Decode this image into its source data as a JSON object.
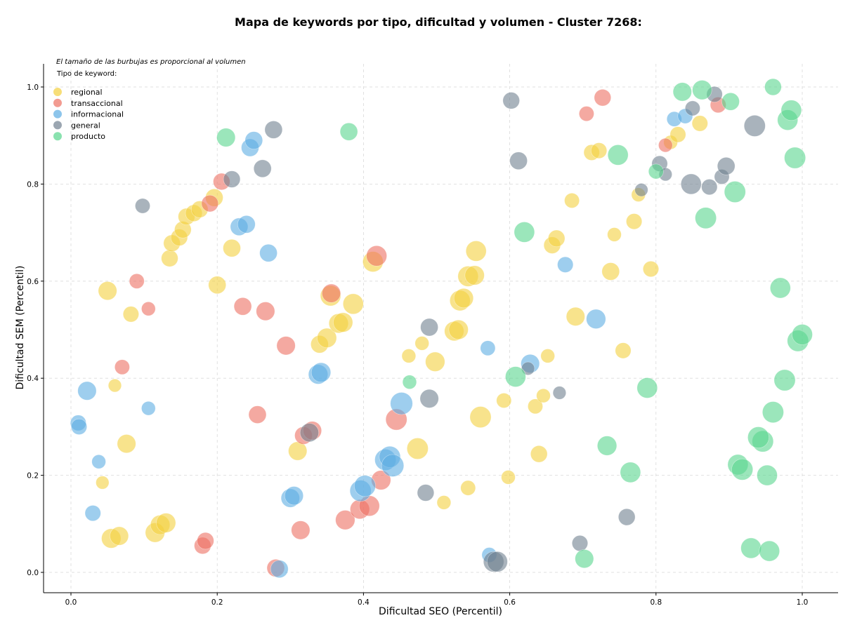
{
  "chart_data": {
    "type": "scatter",
    "title": "Mapa de keywords por tipo, dificultad y volumen - Cluster 7268:",
    "xlabel": "Dificultad SEO (Percentil)",
    "ylabel": "Dificultad SEM (Percentil)",
    "note": "El tamaño de las burbujas es proporcional al volumen",
    "legend_title": "Tipo de keyword:",
    "legend_position": "top-left",
    "grid": true,
    "xlim": [
      -0.05,
      1.05
    ],
    "ylim": [
      -0.04,
      1.05
    ],
    "x_ticks": [
      "0.0",
      "0.2",
      "0.4",
      "0.6",
      "0.8",
      "1.0"
    ],
    "y_ticks": [
      "0.0",
      "0.2",
      "0.4",
      "0.6",
      "0.8",
      "1.0"
    ],
    "series": [
      {
        "name": "regional",
        "color": "#f4d03f",
        "points": [
          [
            0.05,
            0.58,
            0.55
          ],
          [
            0.082,
            0.532,
            0.4
          ],
          [
            0.06,
            0.385,
            0.25
          ],
          [
            0.076,
            0.265,
            0.55
          ],
          [
            0.043,
            0.185,
            0.25
          ],
          [
            0.055,
            0.07,
            0.6
          ],
          [
            0.066,
            0.075,
            0.55
          ],
          [
            0.115,
            0.082,
            0.6
          ],
          [
            0.122,
            0.098,
            0.6
          ],
          [
            0.13,
            0.102,
            0.6
          ],
          [
            0.135,
            0.647,
            0.45
          ],
          [
            0.138,
            0.678,
            0.45
          ],
          [
            0.148,
            0.69,
            0.45
          ],
          [
            0.153,
            0.706,
            0.45
          ],
          [
            0.158,
            0.733,
            0.45
          ],
          [
            0.168,
            0.74,
            0.45
          ],
          [
            0.176,
            0.748,
            0.45
          ],
          [
            0.196,
            0.772,
            0.5
          ],
          [
            0.2,
            0.592,
            0.5
          ],
          [
            0.22,
            0.668,
            0.5
          ],
          [
            0.31,
            0.25,
            0.55
          ],
          [
            0.34,
            0.47,
            0.5
          ],
          [
            0.35,
            0.483,
            0.6
          ],
          [
            0.355,
            0.57,
            0.65
          ],
          [
            0.366,
            0.513,
            0.6
          ],
          [
            0.372,
            0.515,
            0.6
          ],
          [
            0.386,
            0.553,
            0.65
          ],
          [
            0.413,
            0.64,
            0.65
          ],
          [
            0.474,
            0.255,
            0.7
          ],
          [
            0.48,
            0.472,
            0.3
          ],
          [
            0.462,
            0.446,
            0.3
          ],
          [
            0.498,
            0.434,
            0.6
          ],
          [
            0.51,
            0.144,
            0.3
          ],
          [
            0.524,
            0.497,
            0.6
          ],
          [
            0.53,
            0.5,
            0.6
          ],
          [
            0.532,
            0.56,
            0.65
          ],
          [
            0.537,
            0.565,
            0.6
          ],
          [
            0.543,
            0.61,
            0.65
          ],
          [
            0.552,
            0.612,
            0.6
          ],
          [
            0.554,
            0.662,
            0.65
          ],
          [
            0.56,
            0.32,
            0.7
          ],
          [
            0.543,
            0.174,
            0.35
          ],
          [
            0.592,
            0.354,
            0.35
          ],
          [
            0.598,
            0.196,
            0.3
          ],
          [
            0.635,
            0.342,
            0.35
          ],
          [
            0.64,
            0.244,
            0.45
          ],
          [
            0.646,
            0.364,
            0.3
          ],
          [
            0.652,
            0.446,
            0.3
          ],
          [
            0.658,
            0.674,
            0.45
          ],
          [
            0.664,
            0.688,
            0.45
          ],
          [
            0.685,
            0.766,
            0.35
          ],
          [
            0.69,
            0.527,
            0.55
          ],
          [
            0.712,
            0.865,
            0.4
          ],
          [
            0.722,
            0.869,
            0.4
          ],
          [
            0.738,
            0.62,
            0.5
          ],
          [
            0.743,
            0.696,
            0.3
          ],
          [
            0.755,
            0.457,
            0.4
          ],
          [
            0.77,
            0.723,
            0.4
          ],
          [
            0.776,
            0.778,
            0.3
          ],
          [
            0.793,
            0.625,
            0.4
          ],
          [
            0.82,
            0.886,
            0.3
          ],
          [
            0.83,
            0.902,
            0.4
          ],
          [
            0.86,
            0.925,
            0.4
          ]
        ]
      },
      {
        "name": "transaccional",
        "color": "#ec7063",
        "points": [
          [
            0.07,
            0.423,
            0.35
          ],
          [
            0.09,
            0.6,
            0.35
          ],
          [
            0.106,
            0.543,
            0.3
          ],
          [
            0.18,
            0.055,
            0.45
          ],
          [
            0.184,
            0.065,
            0.45
          ],
          [
            0.19,
            0.76,
            0.45
          ],
          [
            0.206,
            0.805,
            0.45
          ],
          [
            0.235,
            0.548,
            0.5
          ],
          [
            0.255,
            0.325,
            0.5
          ],
          [
            0.266,
            0.538,
            0.55
          ],
          [
            0.28,
            0.009,
            0.5
          ],
          [
            0.294,
            0.467,
            0.55
          ],
          [
            0.314,
            0.087,
            0.55
          ],
          [
            0.318,
            0.282,
            0.5
          ],
          [
            0.33,
            0.292,
            0.55
          ],
          [
            0.356,
            0.575,
            0.55
          ],
          [
            0.375,
            0.108,
            0.6
          ],
          [
            0.395,
            0.13,
            0.6
          ],
          [
            0.408,
            0.137,
            0.65
          ],
          [
            0.424,
            0.19,
            0.6
          ],
          [
            0.418,
            0.652,
            0.65
          ],
          [
            0.445,
            0.315,
            0.7
          ],
          [
            0.705,
            0.945,
            0.35
          ],
          [
            0.727,
            0.978,
            0.45
          ],
          [
            0.813,
            0.88,
            0.3
          ],
          [
            0.885,
            0.963,
            0.4
          ]
        ]
      },
      {
        "name": "informacional",
        "color": "#5dade2",
        "points": [
          [
            0.01,
            0.308,
            0.4
          ],
          [
            0.011,
            0.3,
            0.4
          ],
          [
            0.022,
            0.374,
            0.55
          ],
          [
            0.03,
            0.122,
            0.4
          ],
          [
            0.038,
            0.228,
            0.3
          ],
          [
            0.106,
            0.338,
            0.3
          ],
          [
            0.23,
            0.712,
            0.5
          ],
          [
            0.24,
            0.717,
            0.5
          ],
          [
            0.245,
            0.875,
            0.5
          ],
          [
            0.25,
            0.89,
            0.5
          ],
          [
            0.27,
            0.658,
            0.5
          ],
          [
            0.285,
            0.007,
            0.5
          ],
          [
            0.3,
            0.153,
            0.55
          ],
          [
            0.305,
            0.158,
            0.55
          ],
          [
            0.338,
            0.408,
            0.6
          ],
          [
            0.342,
            0.412,
            0.6
          ],
          [
            0.396,
            0.168,
            0.7
          ],
          [
            0.402,
            0.178,
            0.7
          ],
          [
            0.43,
            0.232,
            0.7
          ],
          [
            0.436,
            0.238,
            0.7
          ],
          [
            0.44,
            0.22,
            0.75
          ],
          [
            0.452,
            0.348,
            0.75
          ],
          [
            0.57,
            0.462,
            0.35
          ],
          [
            0.572,
            0.036,
            0.35
          ],
          [
            0.628,
            0.43,
            0.55
          ],
          [
            0.676,
            0.634,
            0.4
          ],
          [
            0.718,
            0.522,
            0.6
          ],
          [
            0.825,
            0.934,
            0.35
          ],
          [
            0.84,
            0.94,
            0.35
          ]
        ]
      },
      {
        "name": "general",
        "color": "#708090",
        "points": [
          [
            0.098,
            0.755,
            0.35
          ],
          [
            0.22,
            0.81,
            0.45
          ],
          [
            0.262,
            0.832,
            0.5
          ],
          [
            0.277,
            0.912,
            0.5
          ],
          [
            0.326,
            0.288,
            0.55
          ],
          [
            0.485,
            0.164,
            0.45
          ],
          [
            0.49,
            0.358,
            0.55
          ],
          [
            0.49,
            0.505,
            0.5
          ],
          [
            0.578,
            0.022,
            0.65
          ],
          [
            0.583,
            0.022,
            0.65
          ],
          [
            0.602,
            0.972,
            0.45
          ],
          [
            0.612,
            0.848,
            0.5
          ],
          [
            0.625,
            0.42,
            0.25
          ],
          [
            0.668,
            0.37,
            0.25
          ],
          [
            0.696,
            0.06,
            0.4
          ],
          [
            0.76,
            0.114,
            0.45
          ],
          [
            0.78,
            0.788,
            0.25
          ],
          [
            0.805,
            0.842,
            0.4
          ],
          [
            0.813,
            0.82,
            0.25
          ],
          [
            0.848,
            0.8,
            0.65
          ],
          [
            0.85,
            0.956,
            0.35
          ],
          [
            0.873,
            0.794,
            0.4
          ],
          [
            0.88,
            0.985,
            0.4
          ],
          [
            0.89,
            0.815,
            0.35
          ],
          [
            0.896,
            0.837,
            0.5
          ],
          [
            0.935,
            0.92,
            0.7
          ]
        ]
      },
      {
        "name": "producto",
        "color": "#58d68d",
        "points": [
          [
            0.212,
            0.896,
            0.55
          ],
          [
            0.38,
            0.908,
            0.5
          ],
          [
            0.463,
            0.392,
            0.3
          ],
          [
            0.608,
            0.403,
            0.65
          ],
          [
            0.62,
            0.701,
            0.65
          ],
          [
            0.702,
            0.028,
            0.55
          ],
          [
            0.733,
            0.261,
            0.6
          ],
          [
            0.748,
            0.86,
            0.65
          ],
          [
            0.765,
            0.206,
            0.65
          ],
          [
            0.788,
            0.38,
            0.65
          ],
          [
            0.8,
            0.826,
            0.35
          ],
          [
            0.836,
            0.99,
            0.55
          ],
          [
            0.863,
            0.994,
            0.6
          ],
          [
            0.868,
            0.73,
            0.7
          ],
          [
            0.902,
            0.97,
            0.5
          ],
          [
            0.908,
            0.784,
            0.7
          ],
          [
            0.912,
            0.222,
            0.65
          ],
          [
            0.918,
            0.212,
            0.7
          ],
          [
            0.93,
            0.05,
            0.65
          ],
          [
            0.946,
            0.27,
            0.7
          ],
          [
            0.94,
            0.278,
            0.7
          ],
          [
            0.952,
            0.2,
            0.65
          ],
          [
            0.955,
            0.044,
            0.65
          ],
          [
            0.96,
            0.33,
            0.7
          ],
          [
            0.96,
            1.0,
            0.45
          ],
          [
            0.97,
            0.586,
            0.65
          ],
          [
            0.976,
            0.396,
            0.7
          ],
          [
            0.98,
            0.932,
            0.65
          ],
          [
            0.985,
            0.952,
            0.65
          ],
          [
            0.99,
            0.854,
            0.7
          ],
          [
            0.994,
            0.477,
            0.7
          ],
          [
            1.0,
            0.49,
            0.65
          ]
        ]
      }
    ]
  }
}
